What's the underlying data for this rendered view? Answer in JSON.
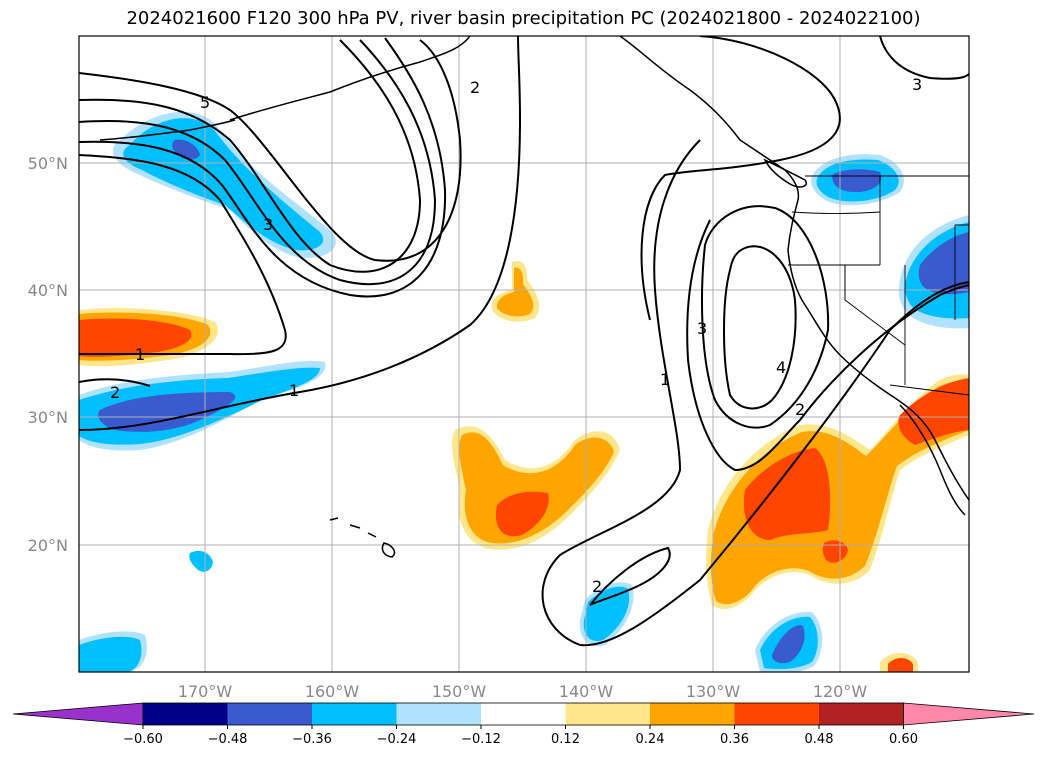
{
  "title": "2024021600 F120 300 hPa PV, river basin precipitation PC (2024021800 - 2024022100)",
  "lat_labels": [
    "50°N",
    "40°N",
    "30°N",
    "20°N"
  ],
  "lon_labels": [
    "170°W",
    "160°W",
    "150°W",
    "140°W",
    "130°W",
    "120°W"
  ],
  "colorbar": {
    "ticks": [
      "−0.60",
      "−0.48",
      "−0.36",
      "−0.24",
      "−0.12",
      "0.12",
      "0.24",
      "0.36",
      "0.48",
      "0.60"
    ],
    "colors": [
      "#9932cc",
      "#00008b",
      "#3a5bd0",
      "#00bfff",
      "#b0e2ff",
      "#ffffff",
      "#ffe68a",
      "#ffa500",
      "#ff4500",
      "#b22222",
      "#ff88aa"
    ]
  },
  "contour_labels": [
    {
      "name": "pv-label-5",
      "text": "5"
    },
    {
      "name": "pv-label-3-west",
      "text": "3"
    },
    {
      "name": "pv-label-2-north",
      "text": "2"
    },
    {
      "name": "pv-label-1-west",
      "text": "1"
    },
    {
      "name": "pv-label-2-west",
      "text": "2"
    },
    {
      "name": "pv-label-1-mid",
      "text": "1"
    },
    {
      "name": "pv-label-3-northeast",
      "text": "3"
    },
    {
      "name": "pv-label-3-ridge",
      "text": "3"
    },
    {
      "name": "pv-label-4-ridge",
      "text": "4"
    },
    {
      "name": "pv-label-1-ridge",
      "text": "1"
    },
    {
      "name": "pv-label-2-east",
      "text": "2"
    },
    {
      "name": "pv-label-2-south",
      "text": "2"
    }
  ]
}
